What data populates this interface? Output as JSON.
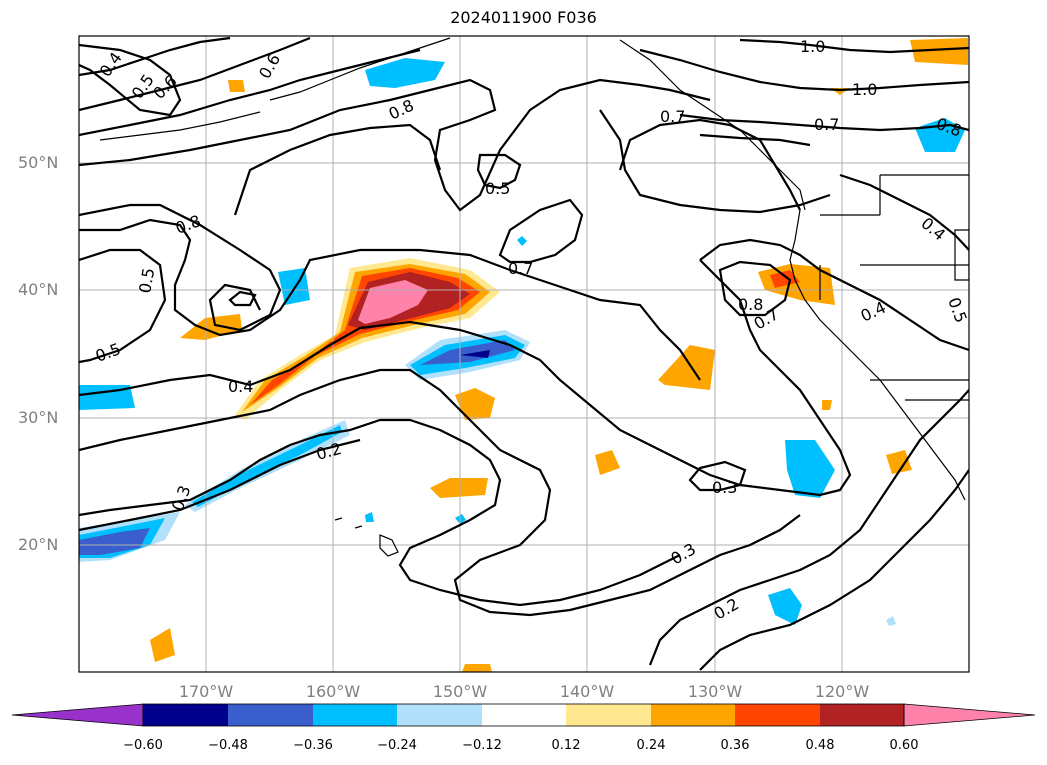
{
  "title": "2024011900 F036",
  "map": {
    "projection": "cylindrical",
    "lon_range": [
      -180,
      -110
    ],
    "lat_range": [
      10,
      60
    ],
    "gridlines": true,
    "lat_labels": [
      "50°N",
      "40°N",
      "30°N",
      "20°N"
    ],
    "lon_labels": [
      "170°W",
      "160°W",
      "150°W",
      "140°W",
      "130°W",
      "120°W"
    ]
  },
  "contours": {
    "color": "#000000",
    "labels": [
      "0.4",
      "0.5",
      "0.6",
      "0.6",
      "0.8",
      "1.0",
      "1.0",
      "0.7",
      "0.8",
      "0.7",
      "0.5",
      "0.8",
      "0.7",
      "0.5",
      "0.5",
      "0.4",
      "0.8",
      "0.7",
      "0.4",
      "0.4",
      "0.5",
      "0.2",
      "0.3",
      "0.3",
      "0.3",
      "0.2"
    ]
  },
  "colorbar": {
    "ticks": [
      "−0.60",
      "−0.48",
      "−0.36",
      "−0.24",
      "−0.12",
      "0.12",
      "0.24",
      "0.36",
      "0.48",
      "0.60"
    ],
    "colors": [
      "#9932cc",
      "#00008b",
      "#3a5fcd",
      "#00bfff",
      "#b0e0fa",
      "#ffffff",
      "#ffe88f",
      "#ffa500",
      "#ff4500",
      "#b22222",
      "#ff82ab"
    ]
  }
}
